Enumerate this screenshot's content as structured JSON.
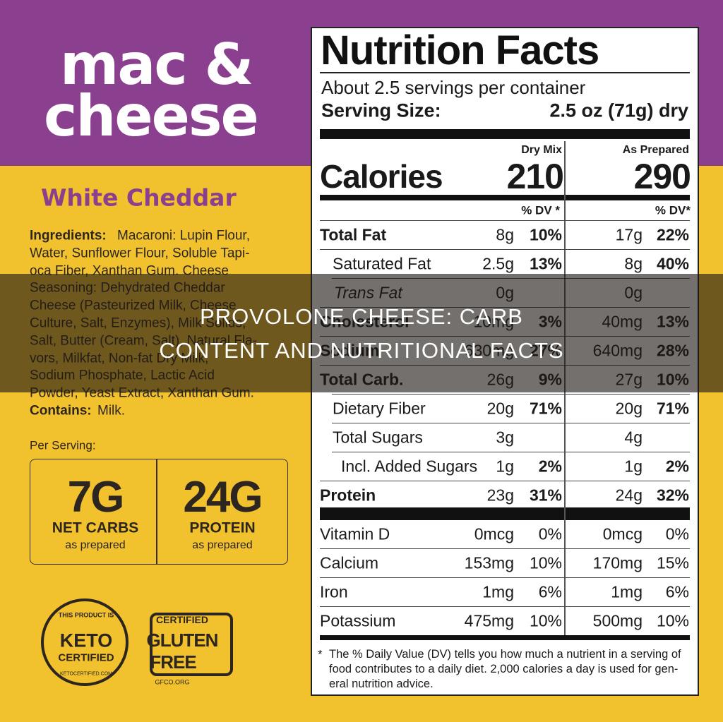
{
  "overlay": {
    "title": "PROVOLONE CHEESE: CARB CONTENT AND NUTRITIONAL FACTS"
  },
  "package": {
    "brand_lines": [
      "mac &",
      "cheese"
    ],
    "flavor": "White Cheddar",
    "ingredients": {
      "label": "Ingredients:",
      "lines": [
        "Macaroni: Lupin Flour,",
        "Water, Sunflower Flour, Soluble Tapi-",
        "oca Fiber, Xanthan Gum. Cheese",
        "Seasoning: Dehydrated Cheddar",
        "Cheese (Pasteurized Milk, Cheese",
        "Culture, Salt, Enzymes), Milk Solids,",
        "Salt, Butter (Cream, Salt), Natural Fla-",
        "vors, Milkfat, Non-fat Dry Milk,",
        "Sodium Phosphate, Lactic Acid",
        "Powder, Yeast Extract, Xanthan Gum."
      ]
    },
    "contains": {
      "label": "Contains:",
      "text": "Milk."
    },
    "per_serving": "Per Serving:",
    "badges": [
      {
        "value": "7G",
        "label": "NET CARBS",
        "note": "as prepared"
      },
      {
        "value": "24G",
        "label": "PROTEIN",
        "note": "as prepared"
      }
    ],
    "keto_logo": [
      "THIS PRODUCT IS",
      "KETO",
      "CERTIFIED",
      "KETOCERTIFIED.COM"
    ],
    "gluten_logo": [
      "CERTIFIED",
      "GLUTEN",
      "FREE",
      "GFCO.ORG"
    ]
  },
  "nutrition": {
    "title": "Nutrition Facts",
    "servings": "About 2.5 servings per container",
    "serving_size_label": "Serving Size:",
    "serving_size": "2.5 oz (71g) dry",
    "columns": [
      "Dry Mix",
      "As Prepared"
    ],
    "calories_label": "Calories",
    "calories": [
      "210",
      "290"
    ],
    "dv_headers": [
      "% DV *",
      "% DV*"
    ],
    "rows": [
      {
        "name": "Total Fat",
        "dry": "8g",
        "dry_dv": "10%",
        "prep": "17g",
        "prep_dv": "22%"
      },
      {
        "name": "Saturated Fat",
        "dry": "2.5g",
        "dry_dv": "13%",
        "prep": "8g",
        "prep_dv": "40%"
      },
      {
        "name": "Trans Fat",
        "dry": "0g",
        "dry_dv": null,
        "prep": "0g",
        "prep_dv": null
      },
      {
        "name": "Cholesterol",
        "dry": "10mg",
        "dry_dv": "3%",
        "prep": "40mg",
        "prep_dv": "13%"
      },
      {
        "name": "Sodium",
        "dry": "630mg",
        "dry_dv": "27%",
        "prep": "640mg",
        "prep_dv": "28%"
      },
      {
        "name": "Total Carb.",
        "dry": "26g",
        "dry_dv": "9%",
        "prep": "27g",
        "prep_dv": "10%"
      },
      {
        "name": "Dietary Fiber",
        "dry": "20g",
        "dry_dv": "71%",
        "prep": "20g",
        "prep_dv": "71%"
      },
      {
        "name": "Total Sugars",
        "dry": "3g",
        "dry_dv": null,
        "prep": "4g",
        "prep_dv": null
      },
      {
        "name": "Incl. Added Sugars",
        "dry": "1g",
        "dry_dv": "2%",
        "prep": "1g",
        "prep_dv": "2%"
      },
      {
        "name": "Protein",
        "dry": "23g",
        "dry_dv": "31%",
        "prep": "24g",
        "prep_dv": "32%"
      }
    ],
    "vitamins": [
      {
        "name": "Vitamin D",
        "dry": "0mcg",
        "dry_dv": "0%",
        "prep": "0mcg",
        "prep_dv": "0%"
      },
      {
        "name": "Calcium",
        "dry": "153mg",
        "dry_dv": "10%",
        "prep": "170mg",
        "prep_dv": "15%"
      },
      {
        "name": "Iron",
        "dry": "1mg",
        "dry_dv": "6%",
        "prep": "1mg",
        "prep_dv": "6%"
      },
      {
        "name": "Potassium",
        "dry": "475mg",
        "dry_dv": "10%",
        "prep": "500mg",
        "prep_dv": "10%"
      }
    ],
    "footnote": {
      "mark": "*",
      "lines": [
        "The % Daily Value (DV) tells you how much a nutrient in a serving of",
        "food contributes to a daily diet. 2,000 calories a day is used for gen-",
        "eral nutrition advice."
      ]
    }
  }
}
